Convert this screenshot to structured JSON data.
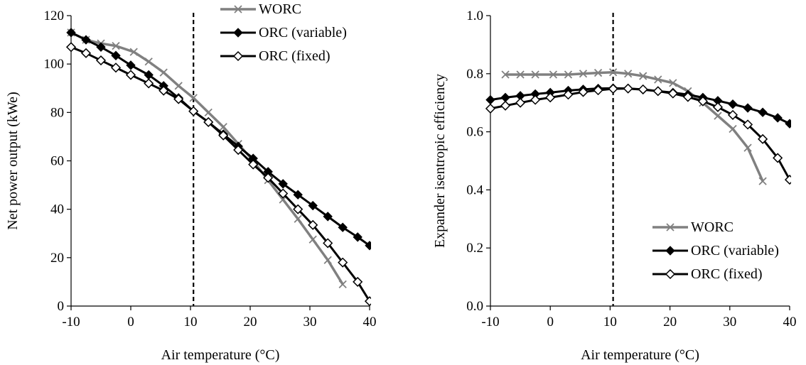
{
  "chart_data": [
    {
      "type": "line",
      "xlabel": "Air temperature (°C)",
      "ylabel": "Net power output (kWe)",
      "xlim": [
        -10,
        40
      ],
      "ylim": [
        0,
        120
      ],
      "xticks": [
        -10,
        0,
        10,
        20,
        30,
        40
      ],
      "yticks": [
        0,
        20,
        40,
        60,
        80,
        100,
        120
      ],
      "xtick_labels": [
        "-10",
        "0",
        "10",
        "20",
        "30",
        "40"
      ],
      "ytick_labels": [
        "0",
        "20",
        "40",
        "60",
        "80",
        "100",
        "120"
      ],
      "grid": false,
      "legend_position": "top-right",
      "vline_x": 10.5,
      "series": [
        {
          "name": "WORC",
          "color": "#808080",
          "marker": "x",
          "x": [
            -10,
            -7.5,
            -5,
            -2.5,
            0.5,
            3,
            5.5,
            8,
            10.5,
            13,
            15.5,
            18,
            20.5,
            23,
            25.5,
            28,
            30.5,
            33,
            35.5
          ],
          "y": [
            113,
            110,
            108.5,
            107.5,
            105,
            101,
            96.5,
            91,
            86,
            80,
            74,
            67,
            60,
            52,
            44,
            36,
            27.5,
            19,
            9
          ]
        },
        {
          "name": "ORC (variable)",
          "color": "#000000",
          "marker": "filled-diamond",
          "x": [
            -10,
            -7.5,
            -5,
            -2.5,
            0,
            3,
            5.5,
            8,
            10.5,
            13,
            15.5,
            18,
            20.5,
            23,
            25.5,
            28,
            30.5,
            33,
            35.5,
            38,
            40
          ],
          "y": [
            113,
            110,
            107,
            103.5,
            99.5,
            95.5,
            91,
            86,
            80.5,
            76,
            71,
            66,
            61,
            55.5,
            50.5,
            46,
            41.5,
            37,
            32.5,
            28.5,
            25
          ]
        },
        {
          "name": "ORC (fixed)",
          "color": "#000000",
          "marker": "open-diamond",
          "x": [
            -10,
            -7.5,
            -5,
            -2.5,
            0,
            3,
            5.5,
            8,
            10.5,
            13,
            15.5,
            18,
            20.5,
            23,
            25.5,
            28,
            30.5,
            33,
            35.5,
            38,
            40
          ],
          "y": [
            107,
            104.5,
            101.5,
            98.5,
            95.5,
            92,
            89,
            85.5,
            80.5,
            76,
            70.5,
            64.5,
            58.5,
            53,
            46.5,
            40,
            33.5,
            26,
            18,
            10,
            2
          ]
        }
      ]
    },
    {
      "type": "line",
      "xlabel": "Air temperature (°C)",
      "ylabel": "Expander isentropic efficiency",
      "xlim": [
        -10,
        40
      ],
      "ylim": [
        0,
        1
      ],
      "xticks": [
        -10,
        0,
        10,
        20,
        30,
        40
      ],
      "yticks": [
        0,
        0.2,
        0.4,
        0.6,
        0.8,
        1
      ],
      "xtick_labels": [
        "-10",
        "0",
        "10",
        "20",
        "30",
        "40"
      ],
      "ytick_labels": [
        "0.0",
        "0.2",
        "0.4",
        "0.6",
        "0.8",
        "1.0"
      ],
      "grid": false,
      "legend_position": "bottom-right",
      "vline_x": 10.5,
      "series": [
        {
          "name": "WORC",
          "color": "#808080",
          "marker": "x",
          "x": [
            -7.5,
            -5,
            -2.5,
            0.5,
            3,
            5.5,
            8,
            10.5,
            13,
            15.5,
            18,
            20.5,
            23,
            25.5,
            28,
            30.5,
            33,
            35.5
          ],
          "y": [
            0.797,
            0.797,
            0.797,
            0.797,
            0.797,
            0.8,
            0.803,
            0.805,
            0.8,
            0.792,
            0.78,
            0.768,
            0.74,
            0.7,
            0.655,
            0.61,
            0.545,
            0.43
          ]
        },
        {
          "name": "ORC (variable)",
          "color": "#000000",
          "marker": "filled-diamond",
          "x": [
            -10,
            -7.5,
            -5,
            -2.5,
            0,
            3,
            5.5,
            8,
            10.5,
            13,
            15.5,
            18,
            20.5,
            23,
            25.5,
            28,
            30.5,
            33,
            35.5,
            38,
            40
          ],
          "y": [
            0.71,
            0.718,
            0.724,
            0.73,
            0.735,
            0.742,
            0.746,
            0.749,
            0.75,
            0.749,
            0.745,
            0.74,
            0.735,
            0.728,
            0.718,
            0.707,
            0.695,
            0.682,
            0.667,
            0.648,
            0.628
          ]
        },
        {
          "name": "ORC (fixed)",
          "color": "#000000",
          "marker": "open-diamond",
          "x": [
            -10,
            -7.5,
            -5,
            -2.5,
            0,
            3,
            5.5,
            8,
            10.5,
            13,
            15.5,
            18,
            20.5,
            23,
            25.5,
            28,
            30.5,
            33,
            35.5,
            38,
            40
          ],
          "y": [
            0.68,
            0.69,
            0.7,
            0.71,
            0.718,
            0.728,
            0.737,
            0.743,
            0.748,
            0.749,
            0.746,
            0.74,
            0.732,
            0.72,
            0.705,
            0.685,
            0.658,
            0.625,
            0.575,
            0.51,
            0.435
          ]
        }
      ]
    }
  ]
}
